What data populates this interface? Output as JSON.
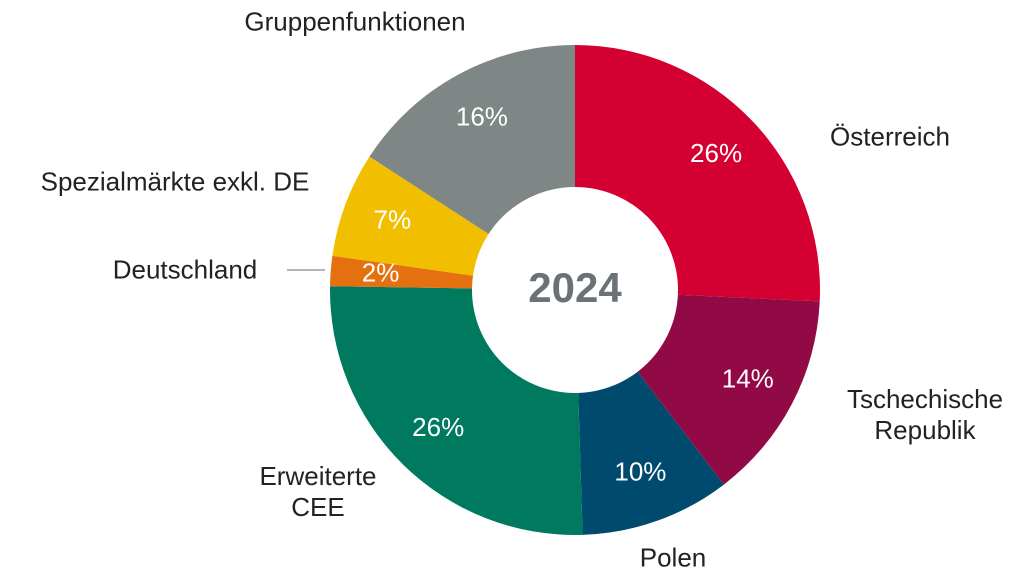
{
  "chart_data": {
    "type": "donut",
    "center_label": "2024",
    "categories": [
      "Österreich",
      "Tschechische Republik",
      "Polen",
      "Erweiterte CEE",
      "Deutschland",
      "Spezialmärkte exkl. DE",
      "Gruppenfunktionen"
    ],
    "values": [
      26,
      14,
      10,
      26,
      2,
      7,
      16
    ],
    "value_labels": [
      "26%",
      "14%",
      "10%",
      "26%",
      "2%",
      "7%",
      "16%"
    ],
    "colors": [
      "#d50032",
      "#920a45",
      "#004a6e",
      "#007a5e",
      "#e4700f",
      "#f2bf00",
      "#7f8686"
    ]
  }
}
